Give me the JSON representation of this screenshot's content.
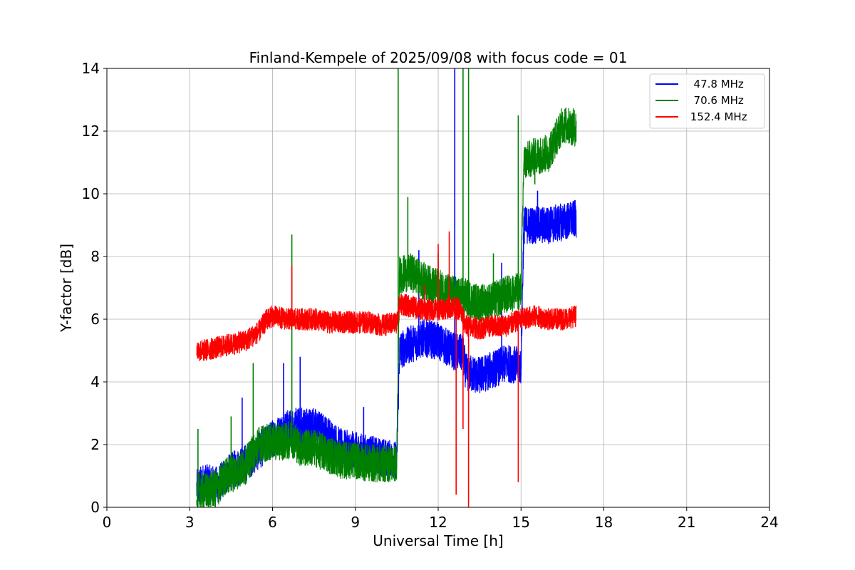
{
  "chart_data": {
    "type": "line",
    "title": "Finland-Kempele of 2025/09/08 with focus code = 01",
    "xlabel": "Universal Time [h]",
    "ylabel": "Y-factor [dB]",
    "xlim": [
      0,
      24
    ],
    "ylim": [
      0,
      14
    ],
    "xticks": [
      "0",
      "3",
      "6",
      "9",
      "12",
      "15",
      "18",
      "21",
      "24"
    ],
    "yticks": [
      "0",
      "2",
      "4",
      "6",
      "8",
      "10",
      "12",
      "14"
    ],
    "grid": true,
    "legend_position": "top-right",
    "series": [
      {
        "name": "  47.8 MHz",
        "color": "#0000ff",
        "points": [
          [
            3.25,
            0.6
          ],
          [
            3.5,
            0.8
          ],
          [
            4.0,
            0.7
          ],
          [
            4.3,
            1.0
          ],
          [
            4.6,
            1.2
          ],
          [
            5.0,
            1.4
          ],
          [
            5.5,
            1.8
          ],
          [
            6.0,
            2.2
          ],
          [
            6.5,
            2.5
          ],
          [
            7.0,
            2.6
          ],
          [
            7.5,
            2.6
          ],
          [
            8.0,
            2.3
          ],
          [
            8.5,
            1.9
          ],
          [
            9.0,
            1.8
          ],
          [
            9.5,
            1.7
          ],
          [
            10.0,
            1.6
          ],
          [
            10.5,
            1.5
          ],
          [
            10.6,
            5.0
          ],
          [
            11.0,
            5.2
          ],
          [
            11.5,
            5.4
          ],
          [
            12.0,
            5.3
          ],
          [
            12.5,
            5.0
          ],
          [
            12.9,
            4.9
          ],
          [
            13.0,
            4.3
          ],
          [
            13.5,
            4.2
          ],
          [
            14.0,
            4.4
          ],
          [
            14.5,
            4.6
          ],
          [
            15.0,
            4.5
          ],
          [
            15.1,
            9.0
          ],
          [
            15.5,
            9.0
          ],
          [
            16.0,
            9.0
          ],
          [
            16.5,
            9.1
          ],
          [
            17.0,
            9.2
          ]
        ],
        "band": 0.6,
        "spikes": [
          [
            4.9,
            3.5
          ],
          [
            6.4,
            4.6
          ],
          [
            7.0,
            4.8
          ],
          [
            9.3,
            3.2
          ],
          [
            11.3,
            8.2
          ],
          [
            12.6,
            14.0
          ],
          [
            14.3,
            7.8
          ],
          [
            15.6,
            10.1
          ]
        ]
      },
      {
        "name": "  70.6 MHz",
        "color": "#008000",
        "points": [
          [
            3.25,
            0.5
          ],
          [
            3.5,
            0.5
          ],
          [
            4.0,
            0.6
          ],
          [
            4.3,
            1.0
          ],
          [
            4.6,
            1.1
          ],
          [
            5.0,
            1.3
          ],
          [
            5.5,
            2.0
          ],
          [
            6.0,
            2.1
          ],
          [
            6.5,
            2.1
          ],
          [
            6.7,
            2.2
          ],
          [
            7.0,
            1.9
          ],
          [
            7.5,
            1.9
          ],
          [
            8.0,
            1.7
          ],
          [
            8.5,
            1.5
          ],
          [
            9.0,
            1.5
          ],
          [
            9.5,
            1.4
          ],
          [
            10.0,
            1.4
          ],
          [
            10.5,
            1.4
          ],
          [
            10.6,
            7.4
          ],
          [
            11.0,
            7.5
          ],
          [
            11.5,
            7.2
          ],
          [
            12.0,
            7.0
          ],
          [
            12.5,
            6.8
          ],
          [
            13.0,
            6.7
          ],
          [
            13.5,
            6.5
          ],
          [
            14.0,
            6.6
          ],
          [
            14.5,
            6.8
          ],
          [
            15.0,
            6.9
          ],
          [
            15.1,
            11.0
          ],
          [
            15.5,
            11.2
          ],
          [
            16.0,
            11.3
          ],
          [
            16.5,
            12.2
          ],
          [
            17.0,
            12.1
          ]
        ],
        "band": 0.6,
        "spikes": [
          [
            3.3,
            2.5
          ],
          [
            4.5,
            2.9
          ],
          [
            5.3,
            4.6
          ],
          [
            6.7,
            8.7
          ],
          [
            10.55,
            14.0
          ],
          [
            10.9,
            9.9
          ],
          [
            12.0,
            8.1
          ],
          [
            12.9,
            14.0
          ],
          [
            13.1,
            14.0
          ],
          [
            14.0,
            8.1
          ],
          [
            14.9,
            12.5
          ],
          [
            15.5,
            10.3
          ]
        ]
      },
      {
        "name": " 152.4 MHz",
        "color": "#ff0000",
        "points": [
          [
            3.25,
            5.0
          ],
          [
            3.5,
            5.0
          ],
          [
            4.0,
            5.1
          ],
          [
            4.5,
            5.2
          ],
          [
            5.0,
            5.3
          ],
          [
            5.5,
            5.6
          ],
          [
            5.8,
            6.0
          ],
          [
            6.0,
            6.1
          ],
          [
            6.5,
            6.0
          ],
          [
            7.0,
            6.0
          ],
          [
            7.5,
            6.0
          ],
          [
            8.0,
            5.9
          ],
          [
            8.5,
            5.9
          ],
          [
            9.0,
            5.9
          ],
          [
            9.5,
            5.9
          ],
          [
            10.0,
            5.8
          ],
          [
            10.5,
            5.9
          ],
          [
            10.6,
            6.5
          ],
          [
            11.0,
            6.4
          ],
          [
            11.5,
            6.3
          ],
          [
            12.0,
            6.3
          ],
          [
            12.5,
            6.4
          ],
          [
            12.8,
            6.3
          ],
          [
            13.0,
            5.8
          ],
          [
            13.5,
            5.7
          ],
          [
            14.0,
            5.8
          ],
          [
            14.5,
            5.8
          ],
          [
            15.0,
            6.0
          ],
          [
            15.5,
            6.1
          ],
          [
            16.0,
            6.0
          ],
          [
            16.5,
            6.0
          ],
          [
            17.0,
            6.1
          ]
        ],
        "band": 0.35,
        "spikes": [
          [
            6.7,
            7.7
          ],
          [
            11.5,
            7.1
          ],
          [
            12.4,
            8.8
          ],
          [
            12.0,
            8.4
          ],
          [
            12.65,
            0.4
          ],
          [
            12.9,
            2.5
          ],
          [
            13.1,
            0.0
          ],
          [
            14.9,
            0.8
          ]
        ]
      }
    ]
  }
}
